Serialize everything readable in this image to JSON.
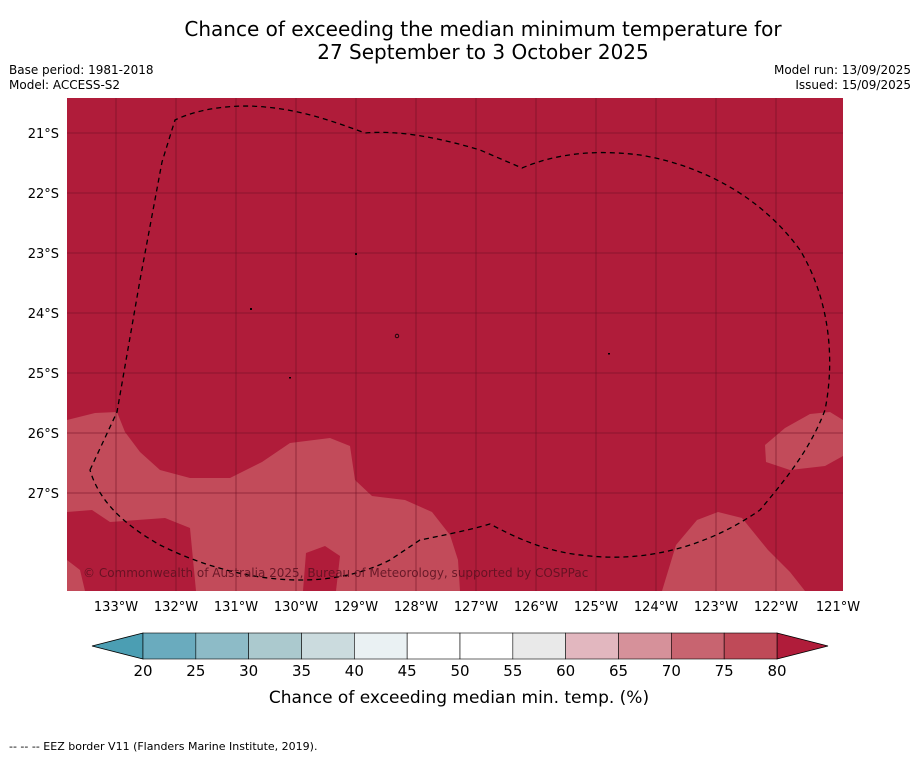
{
  "title_line1": "Chance of exceeding the median minimum temperature for",
  "title_line2": "27 September to 3 October 2025",
  "base_period": "Base period: 1981-2018",
  "model": "Model: ACCESS-S2",
  "model_run": "Model run: 13/09/2025",
  "issued": "Issued: 15/09/2025",
  "copyright": "© Commonwealth of Australia 2025, Bureau of Meteorology, supported by COSPPac",
  "lat_labels": [
    "21°S",
    "22°S",
    "23°S",
    "24°S",
    "25°S",
    "26°S",
    "27°S"
  ],
  "lon_labels": [
    "133°W",
    "132°W",
    "131°W",
    "130°W",
    "129°W",
    "128°W",
    "127°W",
    "126°W",
    "125°W",
    "124°W",
    "123°W",
    "122°W",
    "121°W"
  ],
  "colorbar": {
    "label": "Chance of exceeding median min. temp. (%)",
    "ticks": [
      "20",
      "25",
      "30",
      "35",
      "40",
      "45",
      "50",
      "55",
      "60",
      "65",
      "70",
      "75",
      "80"
    ],
    "colors": [
      "#6aabbe",
      "#8dbbc7",
      "#abc9ce",
      "#cbdbde",
      "#eaf1f3",
      "#ffffff",
      "#ffffff",
      "#e9e9e9",
      "#e2b7bf",
      "#d6919a",
      "#c86470",
      "#bf4a58"
    ],
    "under_color": "#4b9eb3",
    "over_color": "#b01c3a"
  },
  "colors": {
    "high": "#b01c3a",
    "mid": "#c24b5a"
  },
  "footnote": "-- -- -- EEZ border V11 (Flanders Marine Institute, 2019)."
}
